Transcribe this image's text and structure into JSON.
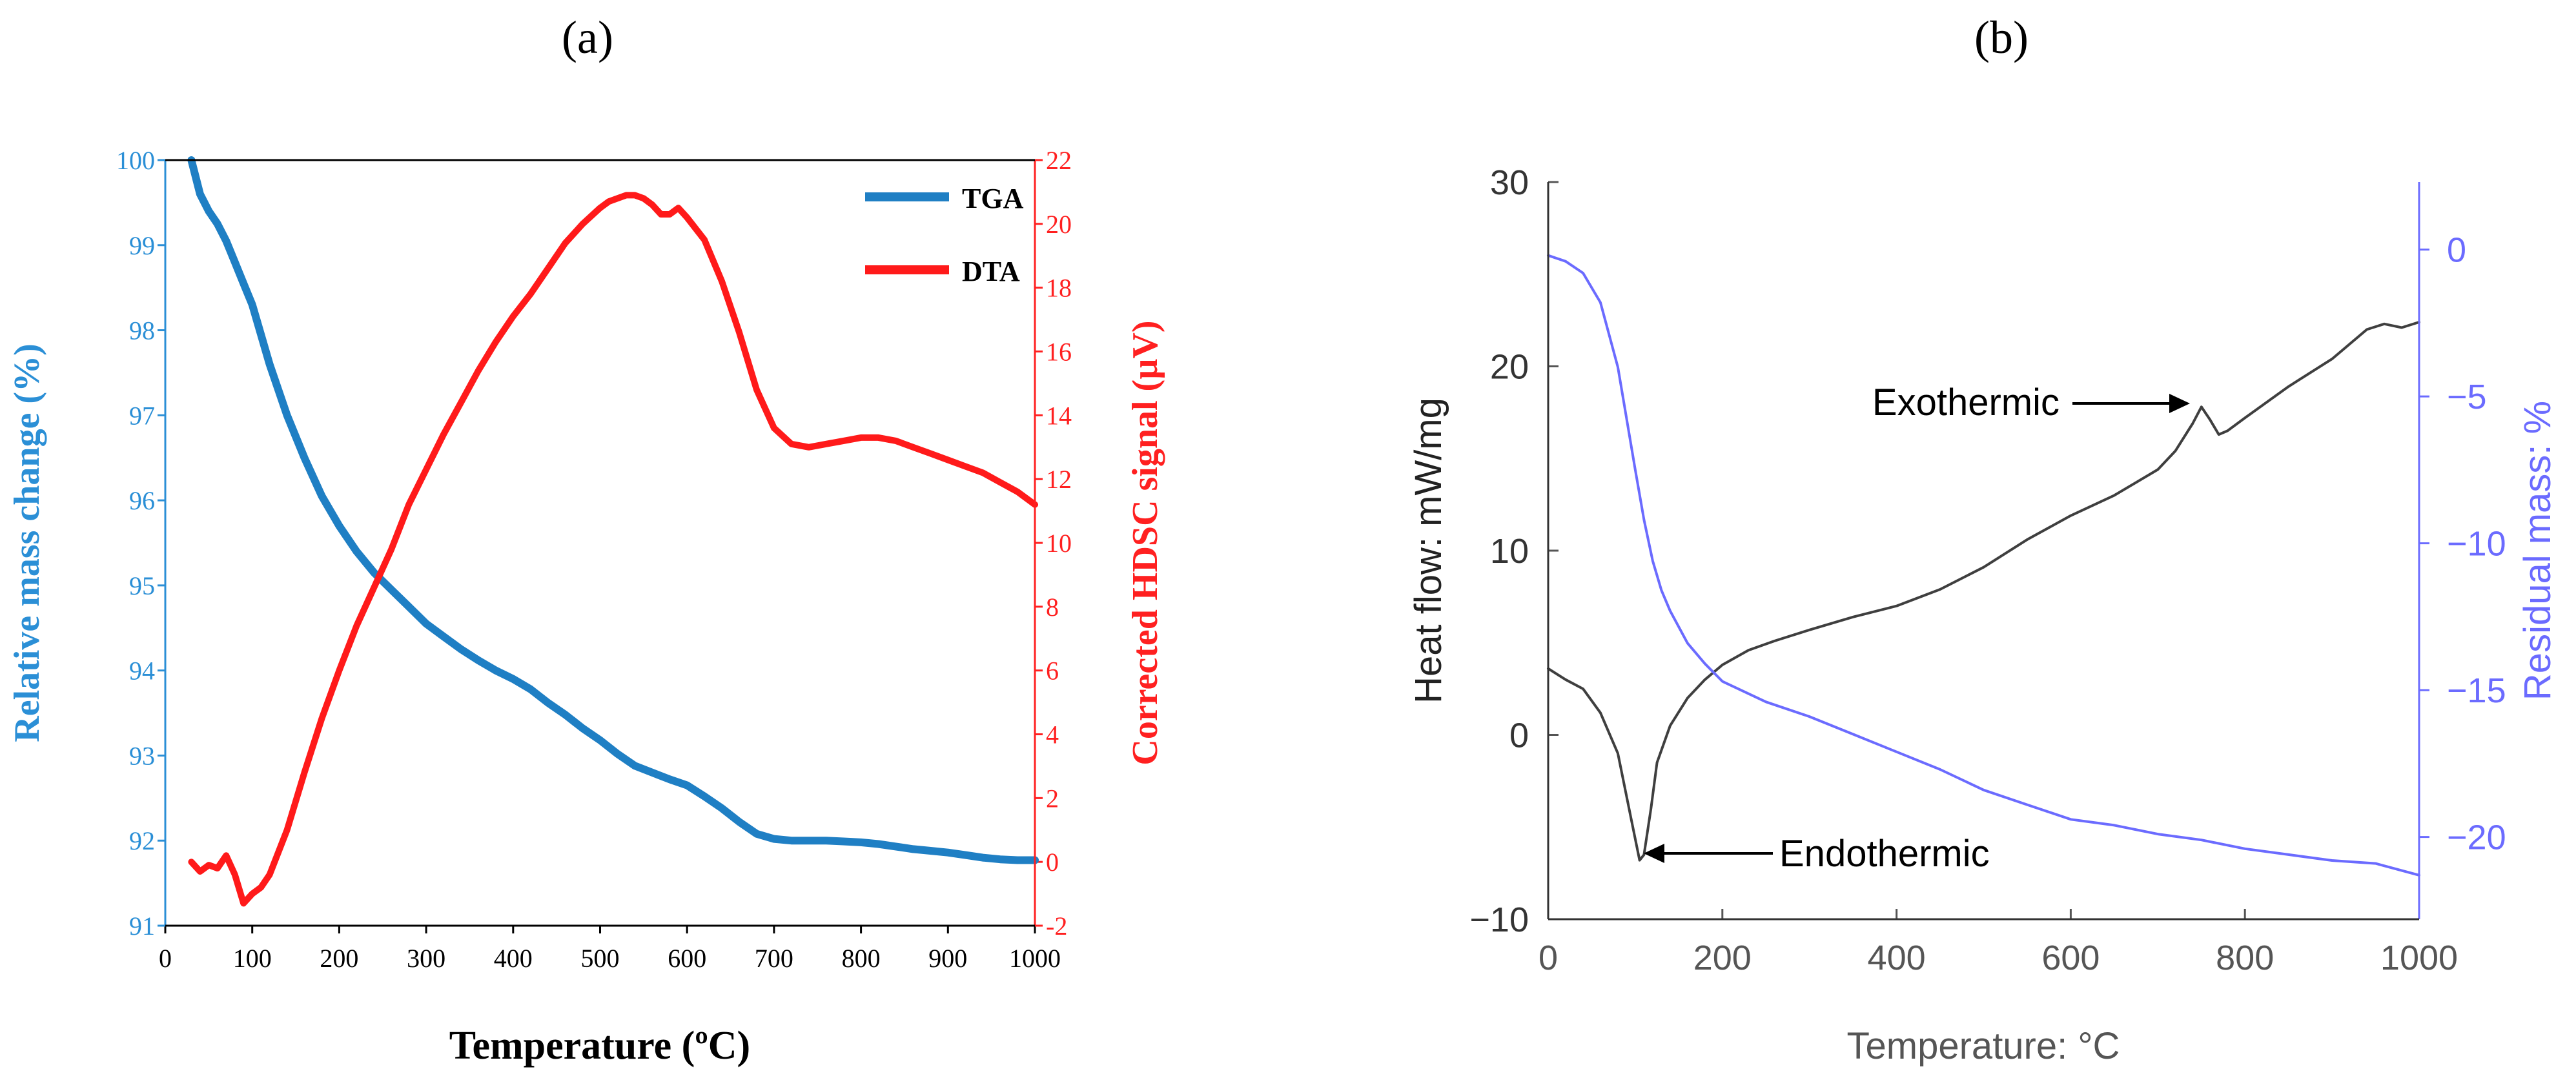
{
  "panels": {
    "a": {
      "label": "(a)"
    },
    "b": {
      "label": "(b)"
    }
  },
  "colors": {
    "tga": "#1f7fc4",
    "dta": "#ff1a1a",
    "heat_flow": "#3f3f3f",
    "residual_mass": "#6b6bff",
    "axis_black": "#000000",
    "left_axis_a": "#2b8fd6",
    "right_axis_a": "#ff2020",
    "axis_gray": "#555555",
    "right_axis_b": "#6b6bff"
  },
  "chart_data": [
    {
      "id": "a",
      "type": "line",
      "title": "",
      "xlabel": "Temperature (ºC)",
      "ylabel": "Relative mass change  (%)",
      "y2label": "Corrected HDSC signal (µV)",
      "xlim": [
        0,
        1000
      ],
      "ylim": [
        91,
        100
      ],
      "y2lim": [
        -2,
        22
      ],
      "xticks": [
        "0",
        "100",
        "200",
        "300",
        "400",
        "500",
        "600",
        "700",
        "800",
        "900",
        "1000"
      ],
      "yticks": [
        "91",
        "92",
        "93",
        "94",
        "95",
        "96",
        "97",
        "98",
        "99",
        "100"
      ],
      "y2ticks": [
        "-2",
        "0",
        "2",
        "4",
        "6",
        "8",
        "10",
        "12",
        "14",
        "16",
        "18",
        "20",
        "22"
      ],
      "legend": {
        "position": "top-right",
        "entries": [
          "TGA",
          "DTA"
        ]
      },
      "series": [
        {
          "name": "TGA",
          "axis": "left",
          "x": [
            30,
            40,
            50,
            60,
            70,
            80,
            90,
            100,
            120,
            140,
            160,
            180,
            200,
            220,
            240,
            260,
            280,
            300,
            320,
            340,
            360,
            380,
            400,
            420,
            440,
            460,
            480,
            500,
            520,
            540,
            560,
            580,
            600,
            620,
            640,
            660,
            680,
            700,
            720,
            740,
            760,
            780,
            800,
            820,
            840,
            860,
            880,
            900,
            920,
            940,
            960,
            980,
            1000
          ],
          "values": [
            100,
            99.6,
            99.4,
            99.25,
            99.05,
            98.8,
            98.55,
            98.3,
            97.6,
            97.0,
            96.5,
            96.05,
            95.7,
            95.4,
            95.15,
            94.95,
            94.75,
            94.55,
            94.4,
            94.25,
            94.12,
            94.0,
            93.9,
            93.78,
            93.62,
            93.48,
            93.32,
            93.18,
            93.02,
            92.88,
            92.8,
            92.72,
            92.65,
            92.52,
            92.38,
            92.22,
            92.08,
            92.02,
            92.0,
            92.0,
            92.0,
            91.99,
            91.98,
            91.96,
            91.93,
            91.9,
            91.88,
            91.86,
            91.83,
            91.8,
            91.78,
            91.77,
            91.77
          ]
        },
        {
          "name": "DTA",
          "axis": "right",
          "x": [
            30,
            40,
            50,
            60,
            70,
            80,
            90,
            100,
            110,
            120,
            140,
            160,
            180,
            200,
            220,
            240,
            260,
            280,
            300,
            320,
            340,
            360,
            380,
            400,
            420,
            440,
            460,
            480,
            500,
            510,
            520,
            530,
            540,
            550,
            560,
            570,
            580,
            590,
            600,
            620,
            640,
            660,
            680,
            700,
            720,
            740,
            760,
            780,
            800,
            820,
            840,
            860,
            880,
            900,
            920,
            940,
            960,
            980,
            1000
          ],
          "values": [
            0.0,
            -0.3,
            -0.1,
            -0.2,
            0.2,
            -0.4,
            -1.3,
            -1.0,
            -0.8,
            -0.4,
            1.0,
            2.8,
            4.5,
            6.0,
            7.4,
            8.6,
            9.8,
            11.2,
            12.3,
            13.4,
            14.4,
            15.4,
            16.3,
            17.1,
            17.8,
            18.6,
            19.4,
            20.0,
            20.5,
            20.7,
            20.8,
            20.9,
            20.9,
            20.8,
            20.6,
            20.3,
            20.3,
            20.5,
            20.2,
            19.5,
            18.2,
            16.6,
            14.8,
            13.6,
            13.1,
            13.0,
            13.1,
            13.2,
            13.3,
            13.3,
            13.2,
            13.0,
            12.8,
            12.6,
            12.4,
            12.2,
            11.9,
            11.6,
            11.2
          ]
        }
      ]
    },
    {
      "id": "b",
      "type": "line",
      "title": "",
      "xlabel": "Temperature: °C",
      "ylabel": "Heat flow: mW/mg",
      "y2label": "Residual mass: %",
      "xlim": [
        0,
        1000
      ],
      "ylim": [
        -10,
        30
      ],
      "y2lim": [
        -22.8,
        2.3
      ],
      "xticks": [
        "0",
        "200",
        "400",
        "600",
        "800",
        "1000"
      ],
      "yticks": [
        "−10",
        "0",
        "10",
        "20",
        "30"
      ],
      "y2ticks": [
        "0",
        "−5",
        "−10",
        "−15",
        "−20"
      ],
      "annotations": [
        {
          "text": "Exothermic",
          "x": 745,
          "y": 17.8
        },
        {
          "text": "Endothermic",
          "x": 110,
          "y": -6.8
        }
      ],
      "series": [
        {
          "name": "Heat flow",
          "axis": "left",
          "x": [
            0,
            20,
            40,
            60,
            80,
            95,
            105,
            110,
            118,
            125,
            140,
            160,
            180,
            200,
            230,
            260,
            300,
            350,
            400,
            450,
            500,
            550,
            600,
            650,
            700,
            720,
            740,
            750,
            760,
            770,
            780,
            800,
            850,
            900,
            940,
            960,
            980,
            1000
          ],
          "values": [
            3.6,
            3.0,
            2.5,
            1.2,
            -1.0,
            -4.5,
            -6.8,
            -6.5,
            -4.0,
            -1.5,
            0.5,
            2.0,
            3.0,
            3.8,
            4.6,
            5.1,
            5.7,
            6.4,
            7.0,
            7.9,
            9.1,
            10.6,
            11.9,
            13.0,
            14.4,
            15.4,
            16.9,
            17.8,
            17.1,
            16.3,
            16.5,
            17.2,
            18.9,
            20.4,
            22.0,
            22.3,
            22.1,
            22.4
          ]
        },
        {
          "name": "Residual mass",
          "axis": "right",
          "x": [
            0,
            20,
            40,
            60,
            80,
            100,
            110,
            120,
            130,
            140,
            160,
            180,
            200,
            250,
            300,
            350,
            400,
            450,
            500,
            550,
            600,
            650,
            700,
            750,
            800,
            850,
            900,
            950,
            1000
          ],
          "values": [
            -0.2,
            -0.4,
            -0.8,
            -1.8,
            -4.0,
            -7.5,
            -9.2,
            -10.6,
            -11.6,
            -12.3,
            -13.4,
            -14.1,
            -14.7,
            -15.4,
            -15.9,
            -16.5,
            -17.1,
            -17.7,
            -18.4,
            -18.9,
            -19.4,
            -19.6,
            -19.9,
            -20.1,
            -20.4,
            -20.6,
            -20.8,
            -20.9,
            -21.3
          ]
        }
      ]
    }
  ]
}
